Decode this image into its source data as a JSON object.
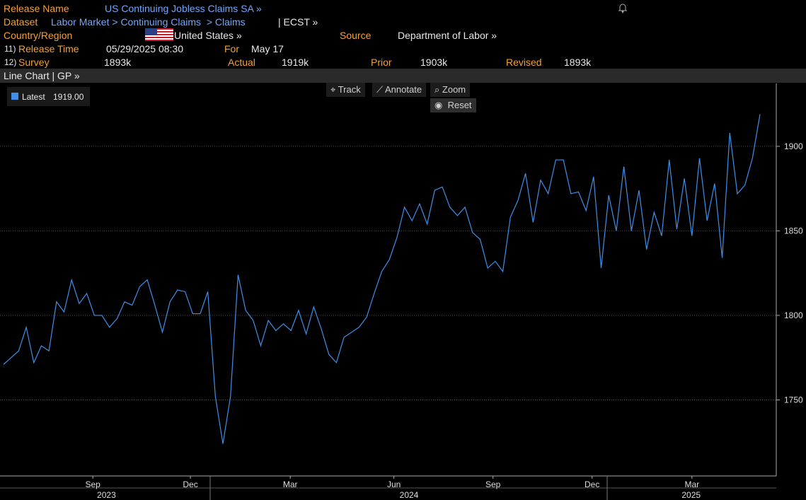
{
  "header": {
    "release_name_label": "Release Name",
    "release_name": "US Continuing Jobless Claims SA »",
    "dataset_label": "Dataset",
    "dataset_path": "Labor Market > Continuing Claims  > Claims",
    "dataset_code": "| ECST »",
    "country_label": "Country/Region",
    "country": "United States »",
    "source_label": "Source",
    "source": "Department of Labor »",
    "release_time_num": "11)",
    "release_time_label": "Release Time",
    "release_time": "05/29/2025 08:30",
    "for_label": "For",
    "for": "May 17",
    "survey_num": "12)",
    "survey_label": "Survey",
    "survey": "1893k",
    "actual_label": "Actual",
    "actual": "1919k",
    "prior_label": "Prior",
    "prior": "1903k",
    "revised_label": "Revised",
    "revised": "1893k"
  },
  "chart_bar": {
    "title": "Line Chart | GP »"
  },
  "toolbar": {
    "track": "Track",
    "annotate": "Annotate",
    "zoom": "Zoom",
    "reset": "Reset"
  },
  "chart_data": {
    "type": "line",
    "series": [
      {
        "name": "Latest",
        "legend_value": "1919.00",
        "color": "#3f8fea",
        "values": [
          1771,
          1775,
          1779,
          1793,
          1772,
          1782,
          1779,
          1808,
          1802,
          1821,
          1807,
          1813,
          1800,
          1800,
          1793,
          1798,
          1808,
          1806,
          1817,
          1821,
          1806,
          1790,
          1808,
          1815,
          1814,
          1801,
          1801,
          1814,
          1752,
          1724,
          1752,
          1824,
          1803,
          1797,
          1782,
          1797,
          1791,
          1795,
          1791,
          1803,
          1789,
          1805,
          1792,
          1777,
          1772,
          1787,
          1790,
          1793,
          1799,
          1813,
          1826,
          1833,
          1846,
          1864,
          1856,
          1866,
          1854,
          1874,
          1876,
          1864,
          1859,
          1864,
          1849,
          1845,
          1828,
          1832,
          1826,
          1858,
          1868,
          1884,
          1855,
          1880,
          1872,
          1892,
          1892,
          1872,
          1873,
          1862,
          1882,
          1828,
          1871,
          1850,
          1888,
          1850,
          1874,
          1839,
          1861,
          1847,
          1892,
          1851,
          1881,
          1847,
          1893,
          1856,
          1878,
          1834,
          1908,
          1872,
          1877,
          1893,
          1919
        ]
      }
    ],
    "xlim": [
      -0.47,
      102.15
    ],
    "xticks": [
      {
        "value": 11.8,
        "label": "Sep"
      },
      {
        "value": 24.7,
        "label": "Dec"
      },
      {
        "value": 37.9,
        "label": "Mar"
      },
      {
        "value": 51.6,
        "label": "Jun"
      },
      {
        "value": 64.7,
        "label": "Sep"
      },
      {
        "value": 77.8,
        "label": "Dec"
      },
      {
        "value": 91.0,
        "label": "Mar"
      }
    ],
    "year_ticks": [
      {
        "value": 13.6,
        "label": "2023"
      },
      {
        "value": 53.6,
        "label": "2024"
      },
      {
        "value": 90.9,
        "label": "2025"
      }
    ],
    "ylim": [
      1705,
      1937.2
    ],
    "yticks": [
      1750,
      1800,
      1850,
      1900
    ],
    "grid": true
  }
}
